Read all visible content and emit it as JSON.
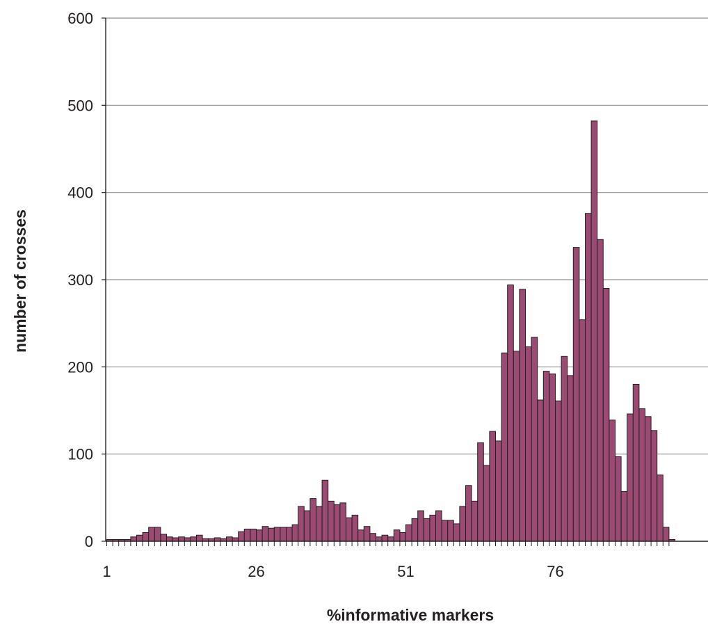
{
  "chart_data": {
    "type": "bar",
    "title": "",
    "xlabel": "%informative markers",
    "ylabel": "number of crosses",
    "ylim": [
      0,
      600
    ],
    "yticks": [
      0,
      100,
      200,
      300,
      400,
      500,
      600
    ],
    "xticks": [
      1,
      26,
      51,
      76
    ],
    "grid": true,
    "bar_color": "#9b4a74",
    "bar_edge_color": "#231f20",
    "categories": [
      1,
      2,
      3,
      4,
      5,
      6,
      7,
      8,
      9,
      10,
      11,
      12,
      13,
      14,
      15,
      16,
      17,
      18,
      19,
      20,
      21,
      22,
      23,
      24,
      25,
      26,
      27,
      28,
      29,
      30,
      31,
      32,
      33,
      34,
      35,
      36,
      37,
      38,
      39,
      40,
      41,
      42,
      43,
      44,
      45,
      46,
      47,
      48,
      49,
      50,
      51,
      52,
      53,
      54,
      55,
      56,
      57,
      58,
      59,
      60,
      61,
      62,
      63,
      64,
      65,
      66,
      67,
      68,
      69,
      70,
      71,
      72,
      73,
      74,
      75,
      76,
      77,
      78,
      79,
      80,
      81,
      82,
      83,
      84,
      85,
      86,
      87,
      88,
      89,
      90,
      91,
      92,
      93,
      94,
      95
    ],
    "values": [
      2,
      2,
      2,
      2,
      5,
      7,
      10,
      16,
      16,
      8,
      5,
      4,
      5,
      4,
      5,
      7,
      3,
      3,
      4,
      3,
      5,
      4,
      11,
      14,
      14,
      13,
      17,
      15,
      16,
      16,
      16,
      19,
      40,
      35,
      49,
      40,
      70,
      46,
      42,
      44,
      27,
      30,
      13,
      17,
      9,
      5,
      7,
      5,
      13,
      10,
      19,
      26,
      35,
      26,
      30,
      35,
      24,
      24,
      20,
      40,
      64,
      46,
      113,
      87,
      126,
      115,
      216,
      294,
      218,
      289,
      223,
      234,
      162,
      195,
      192,
      161,
      212,
      190,
      337,
      254,
      376,
      482,
      346,
      290,
      139,
      97,
      57,
      146,
      180,
      152,
      143,
      127,
      76,
      16,
      2
    ]
  }
}
